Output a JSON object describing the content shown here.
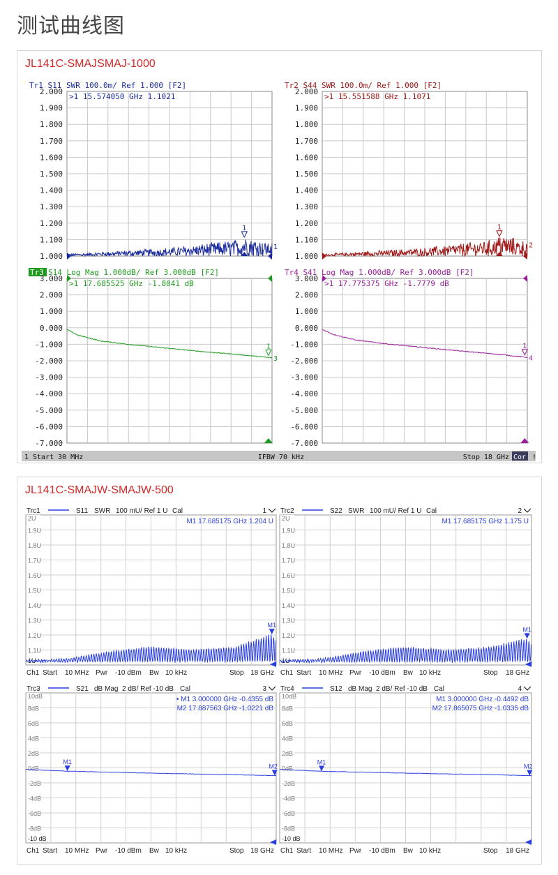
{
  "page_title": "测试曲线图",
  "colors": {
    "tr1": "#1b2c9c",
    "tr2": "#a01818",
    "tr3": "#1e9a1e",
    "tr4": "#9a1e9a",
    "rs_trace": "#2a3ee0",
    "title_red": "#d42a2a"
  },
  "section1": {
    "title": "JL141C-SMAJSMAJ-1000",
    "footer": {
      "channel": "1",
      "start": "Start 30 MHz",
      "ifbw": "IFBW 70 kHz",
      "stop": "Stop 18 GHz",
      "cor": "Cor",
      "end": "!"
    },
    "panels": [
      {
        "id": "tr1",
        "header": "Tr1 S11 SWR 100.0m/ Ref 1.000 [F2]",
        "marker": ">1  15.574050 GHz  1.1021",
        "ticks": [
          "2.000",
          "1.900",
          "1.800",
          "1.700",
          "1.600",
          "1.500",
          "1.400",
          "1.300",
          "1.200",
          "1.100",
          "1.000"
        ],
        "marker_num": "1",
        "trace_num": "1"
      },
      {
        "id": "tr2",
        "header": "Tr2 S44 SWR 100.0m/ Ref 1.000 [F2]",
        "marker": ">1  15.551588 GHz  1.1071",
        "ticks": [
          "2.000",
          "1.900",
          "1.800",
          "1.700",
          "1.600",
          "1.500",
          "1.400",
          "1.300",
          "1.200",
          "1.100",
          "1.000"
        ],
        "marker_num": "1",
        "trace_num": "2"
      },
      {
        "id": "tr3",
        "header_tag": "Tr3",
        "header": " S14 Log Mag 1.000dB/ Ref 3.000dB [F2]",
        "marker": ">1  17.685525 GHz -1.8041 dB",
        "ticks": [
          "3.000",
          "2.000",
          "1.000",
          "0.000",
          "-1.000",
          "-2.000",
          "-3.000",
          "-4.000",
          "-5.000",
          "-6.000",
          "-7.000"
        ],
        "marker_num": "1",
        "trace_num": "3"
      },
      {
        "id": "tr4",
        "header": "Tr4 S41 Log Mag 1.000dB/ Ref 3.000dB [F2]",
        "marker": ">1  17.775375 GHz -1.7779 dB",
        "ticks": [
          "3.000",
          "2.000",
          "1.000",
          "0.000",
          "-1.000",
          "-2.000",
          "-3.000",
          "-4.000",
          "-5.000",
          "-6.000",
          "-7.000"
        ],
        "marker_num": "1",
        "trace_num": "4"
      }
    ]
  },
  "section2": {
    "title": "JL141C-SMAJW-SMAJW-500",
    "panels": [
      {
        "id": "trc1",
        "name": "Trc1",
        "param": "S11",
        "format": "SWR",
        "scale": "100 mU/ Ref 1 U",
        "cal": "Cal",
        "num": "1",
        "ticks": [
          "2U",
          "1.9U",
          "1.8U",
          "1.7U",
          "1.6U",
          "1.5U",
          "1.4U",
          "1.3U",
          "1.2U",
          "1.1U",
          "1U"
        ],
        "markers": [
          "M1  17.685175  GHz  1.204  U"
        ],
        "trace_label": "M1",
        "footer": {
          "ch": "Ch1",
          "start": "Start",
          "start_val": "10 MHz",
          "pwr": "Pwr",
          "pwr_val": "-10 dBm",
          "bw": "Bw",
          "bw_val": "10 kHz",
          "stop": "Stop",
          "stop_val": "18 GHz"
        }
      },
      {
        "id": "trc2",
        "name": "Trc2",
        "param": "S22",
        "format": "SWR",
        "scale": "100 mU/ Ref 1 U",
        "cal": "Cal",
        "num": "2",
        "ticks": [
          "2U",
          "1.9U",
          "1.8U",
          "1.7U",
          "1.6U",
          "1.5U",
          "1.4U",
          "1.3U",
          "1.2U",
          "1.1U",
          "1U"
        ],
        "markers": [
          "M1  17.685175  GHz  1.175  U"
        ],
        "trace_label": "M1",
        "footer": {
          "ch": "Ch1",
          "start": "Start",
          "start_val": "10 MHz",
          "pwr": "Pwr",
          "pwr_val": "-10 dBm",
          "bw": "Bw",
          "bw_val": "10 kHz",
          "stop": "Stop",
          "stop_val": "18 GHz"
        }
      },
      {
        "id": "trc3",
        "name": "Trc3",
        "param": "S21",
        "format": "dB Mag",
        "scale": "2 dB/ Ref -10 dB",
        "cal": "Cal",
        "num": "3",
        "ticks": [
          "10dB",
          "8dB",
          "6dB",
          "4dB",
          "2dB",
          "0dB",
          "-2dB",
          "-4dB",
          "-6dB",
          "-8dB",
          "-10 dB"
        ],
        "markers": [
          "• M1   3.000000  GHz  -0.4355  dB",
          "M2  17.887563  GHz  -1.0221  dB"
        ],
        "m1_label": "M1",
        "m2_label": "M2",
        "footer": {
          "ch": "Ch1",
          "start": "Start",
          "start_val": "10 MHz",
          "pwr": "Pwr",
          "pwr_val": "-10 dBm",
          "bw": "Bw",
          "bw_val": "10 kHz",
          "stop": "Stop",
          "stop_val": "18 GHz"
        }
      },
      {
        "id": "trc4",
        "name": "Trc4",
        "param": "S12",
        "format": "dB Mag",
        "scale": "2 dB/ Ref -10 dB",
        "cal": "Cal",
        "num": "4",
        "ticks": [
          "10dB",
          "8dB",
          "6dB",
          "4dB",
          "2dB",
          "0dB",
          "-2dB",
          "-4dB",
          "-6dB",
          "-8dB",
          "-10 dB"
        ],
        "markers": [
          "M1   3.000000  GHz  -0.4492  dB",
          "M2  17.865075  GHz  -1.0335  dB"
        ],
        "m1_label": "M1",
        "m2_label": "M2",
        "footer": {
          "ch": "Ch1",
          "start": "Start",
          "start_val": "10 MHz",
          "pwr": "Pwr",
          "pwr_val": "-10 dBm",
          "bw": "Bw",
          "bw_val": "10 kHz",
          "stop": "Stop",
          "stop_val": "18 GHz"
        }
      }
    ]
  },
  "chart_data": [
    {
      "type": "line",
      "series": [
        {
          "name": "S11",
          "x": [
            0.03,
            3,
            6,
            9,
            12,
            15,
            15.574,
            18
          ],
          "values": [
            1.01,
            1.02,
            1.03,
            1.04,
            1.06,
            1.08,
            1.1021,
            1.06
          ]
        }
      ],
      "xlim": [
        0.03,
        18
      ],
      "ylim": [
        1.0,
        2.0
      ]
    },
    {
      "type": "line",
      "series": [
        {
          "name": "S44",
          "x": [
            0.03,
            3,
            6,
            9,
            12,
            15,
            15.552,
            18
          ],
          "values": [
            1.01,
            1.02,
            1.03,
            1.04,
            1.06,
            1.08,
            1.1071,
            1.07
          ]
        }
      ],
      "xlim": [
        0.03,
        18
      ],
      "ylim": [
        1.0,
        2.0
      ]
    },
    {
      "type": "line",
      "series": [
        {
          "name": "S14",
          "x": [
            0.03,
            1,
            3,
            6,
            9,
            12,
            15,
            17.686,
            18
          ],
          "values": [
            -0.1,
            -0.45,
            -0.8,
            -1.05,
            -1.25,
            -1.45,
            -1.62,
            -1.8041,
            -1.82
          ]
        }
      ],
      "xlim": [
        0.03,
        18
      ],
      "ylim": [
        -7,
        3
      ]
    },
    {
      "type": "line",
      "series": [
        {
          "name": "S41",
          "x": [
            0.03,
            1,
            3,
            6,
            9,
            12,
            15,
            17.775,
            18
          ],
          "values": [
            -0.1,
            -0.4,
            -0.75,
            -1.0,
            -1.2,
            -1.4,
            -1.58,
            -1.7779,
            -1.8
          ]
        }
      ],
      "xlim": [
        0.03,
        18
      ],
      "ylim": [
        -7,
        3
      ]
    },
    {
      "type": "line",
      "series": [
        {
          "name": "S11",
          "x": [
            0.01,
            3,
            6,
            9,
            12,
            15,
            17.685,
            18
          ],
          "values": [
            1.03,
            1.04,
            1.09,
            1.12,
            1.1,
            1.12,
            1.204,
            1.16
          ]
        }
      ],
      "xlim": [
        0.01,
        18
      ],
      "ylim": [
        1,
        2
      ]
    },
    {
      "type": "line",
      "series": [
        {
          "name": "S22",
          "x": [
            0.01,
            3,
            6,
            9,
            12,
            15,
            17.685,
            18
          ],
          "values": [
            1.03,
            1.04,
            1.09,
            1.12,
            1.1,
            1.12,
            1.175,
            1.14
          ]
        }
      ],
      "xlim": [
        0.01,
        18
      ],
      "ylim": [
        1,
        2
      ]
    },
    {
      "type": "line",
      "series": [
        {
          "name": "S21",
          "x": [
            0.01,
            3,
            9,
            15,
            17.888,
            18
          ],
          "values": [
            -0.2,
            -0.4355,
            -0.7,
            -0.9,
            -1.0221,
            -1.03
          ]
        }
      ],
      "xlim": [
        0.01,
        18
      ],
      "ylim": [
        -10,
        10
      ]
    },
    {
      "type": "line",
      "series": [
        {
          "name": "S12",
          "x": [
            0.01,
            3,
            9,
            15,
            17.865,
            18
          ],
          "values": [
            -0.2,
            -0.4492,
            -0.7,
            -0.9,
            -1.0335,
            -1.04
          ]
        }
      ],
      "xlim": [
        0.01,
        18
      ],
      "ylim": [
        -10,
        10
      ]
    }
  ]
}
